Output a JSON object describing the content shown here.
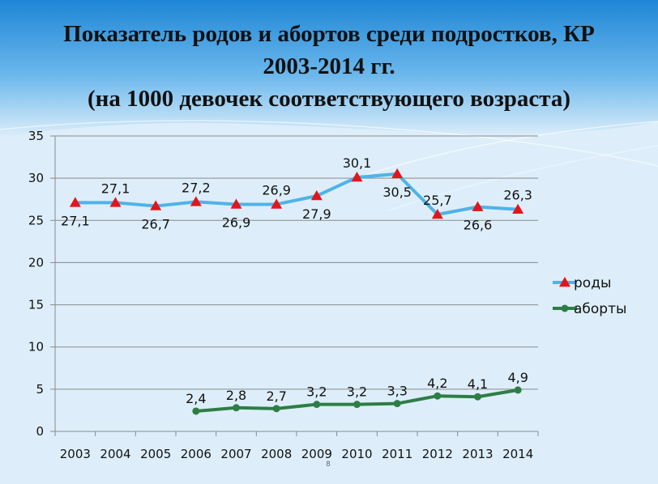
{
  "slide": {
    "title_line1": "Показатель родов и абортов среди подростков, КР",
    "title_line2": "2003-2014 гг.",
    "title_line3": "(на 1000 девочек соответствующего  возраста)",
    "slide_number": "8"
  },
  "colors": {
    "background": "#ddeefa",
    "rody_line": "#4fb3e8",
    "rody_marker": "#e3151a",
    "aborty_line": "#2e7d45",
    "aborty_marker": "#2e7d45",
    "grid": "#8a8a8a"
  },
  "chart_data": {
    "type": "line",
    "categories": [
      "2003",
      "2004",
      "2005",
      "2006",
      "2007",
      "2008",
      "2009",
      "2010",
      "2011",
      "2012",
      "2013",
      "2014"
    ],
    "ylim": [
      0,
      35
    ],
    "yticks": [
      0,
      5,
      10,
      15,
      20,
      25,
      30,
      35
    ],
    "grid": true,
    "legend_position": "right",
    "series": [
      {
        "name": "роды",
        "values": [
          27.1,
          27.1,
          26.7,
          27.2,
          26.9,
          26.9,
          27.9,
          30.1,
          30.5,
          25.7,
          26.6,
          26.3
        ],
        "labels": [
          "27,1",
          "27,1",
          "26,7",
          "27,2",
          "26,9",
          "26,9",
          "27,9",
          "30,1",
          "30,5",
          "25,7",
          "26,6",
          "26,3"
        ],
        "label_positions": [
          "below",
          "above",
          "below",
          "above",
          "below",
          "above",
          "below",
          "above",
          "below",
          "above",
          "below",
          "above"
        ]
      },
      {
        "name": "аборты",
        "values": [
          null,
          null,
          null,
          2.4,
          2.8,
          2.7,
          3.2,
          3.2,
          3.3,
          4.2,
          4.1,
          4.9
        ],
        "labels": [
          "",
          "",
          "",
          "2,4",
          "2,8",
          "2,7",
          "3,2",
          "3,2",
          "3,3",
          "4,2",
          "4,1",
          "4,9"
        ],
        "label_positions": [
          "",
          "",
          "",
          "above",
          "above",
          "above",
          "above",
          "above",
          "above",
          "above",
          "above",
          "above"
        ]
      }
    ]
  }
}
